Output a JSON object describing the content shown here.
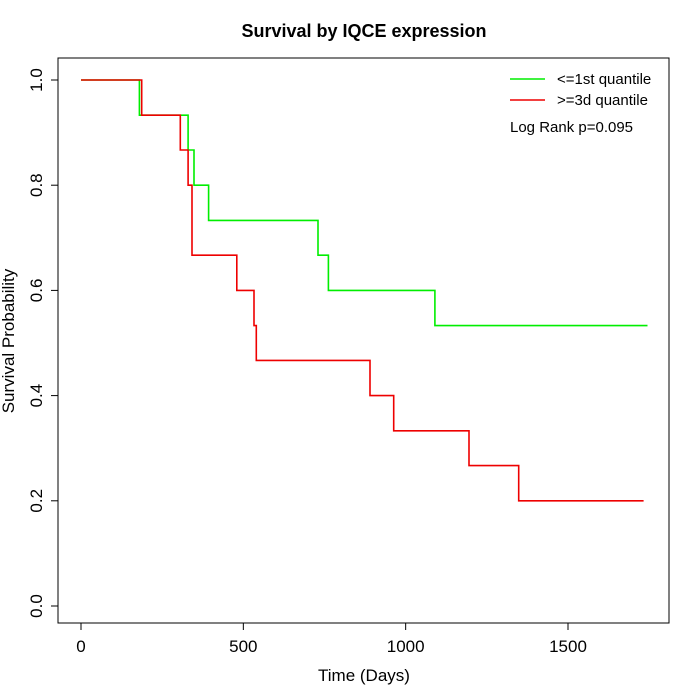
{
  "chart_data": {
    "type": "line",
    "title": "Survival by IQCE expression",
    "xlabel": "Time (Days)",
    "ylabel": "Survival Probability",
    "xlim": [
      0,
      1800
    ],
    "ylim": [
      0,
      1.0
    ],
    "xticks": [
      0,
      500,
      1000,
      1500
    ],
    "yticks": [
      0.0,
      0.2,
      0.4,
      0.6,
      0.8,
      1.0
    ],
    "xtick_labels": [
      "0",
      "500",
      "1000",
      "1500"
    ],
    "ytick_labels": [
      "0.0",
      "0.2",
      "0.4",
      "0.6",
      "0.8",
      "1.0"
    ],
    "grid": false,
    "legend_position": "top-right",
    "annotation": "Log Rank p=0.095",
    "series": [
      {
        "name": "<=1st quantile",
        "color": "#00ee00",
        "step": true,
        "points": [
          [
            0,
            1.0
          ],
          [
            180,
            1.0
          ],
          [
            180,
            0.933
          ],
          [
            330,
            0.933
          ],
          [
            330,
            0.867
          ],
          [
            348,
            0.867
          ],
          [
            348,
            0.8
          ],
          [
            393,
            0.8
          ],
          [
            393,
            0.733
          ],
          [
            730,
            0.733
          ],
          [
            730,
            0.667
          ],
          [
            762,
            0.667
          ],
          [
            762,
            0.6
          ],
          [
            1090,
            0.6
          ],
          [
            1090,
            0.533
          ],
          [
            1745,
            0.533
          ]
        ]
      },
      {
        "name": ">=3d quantile",
        "color": "#ee0000",
        "step": true,
        "points": [
          [
            0,
            1.0
          ],
          [
            187,
            1.0
          ],
          [
            187,
            0.933
          ],
          [
            306,
            0.933
          ],
          [
            306,
            0.867
          ],
          [
            330,
            0.867
          ],
          [
            330,
            0.8
          ],
          [
            342,
            0.8
          ],
          [
            342,
            0.667
          ],
          [
            480,
            0.667
          ],
          [
            480,
            0.6
          ],
          [
            533,
            0.6
          ],
          [
            533,
            0.533
          ],
          [
            540,
            0.533
          ],
          [
            540,
            0.467
          ],
          [
            890,
            0.467
          ],
          [
            890,
            0.4
          ],
          [
            963,
            0.4
          ],
          [
            963,
            0.333
          ],
          [
            1195,
            0.333
          ],
          [
            1195,
            0.267
          ],
          [
            1348,
            0.267
          ],
          [
            1348,
            0.2
          ],
          [
            1733,
            0.2
          ]
        ]
      }
    ]
  }
}
